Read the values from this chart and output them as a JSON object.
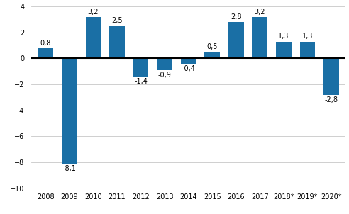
{
  "categories": [
    "2008",
    "2009",
    "2010",
    "2011",
    "2012",
    "2013",
    "2014",
    "2015",
    "2016",
    "2017",
    "2018*",
    "2019*",
    "2020*"
  ],
  "values": [
    0.8,
    -8.1,
    3.2,
    2.5,
    -1.4,
    -0.9,
    -0.4,
    0.5,
    2.8,
    3.2,
    1.3,
    1.3,
    -2.8
  ],
  "bar_color": "#1a6fa5",
  "ylim": [
    -10,
    4
  ],
  "yticks": [
    -10,
    -8,
    -6,
    -4,
    -2,
    0,
    2,
    4
  ],
  "grid_color": "#c8c8c8",
  "background_color": "#ffffff",
  "label_fontsize": 7.0,
  "tick_fontsize": 7.0,
  "bar_width": 0.65
}
